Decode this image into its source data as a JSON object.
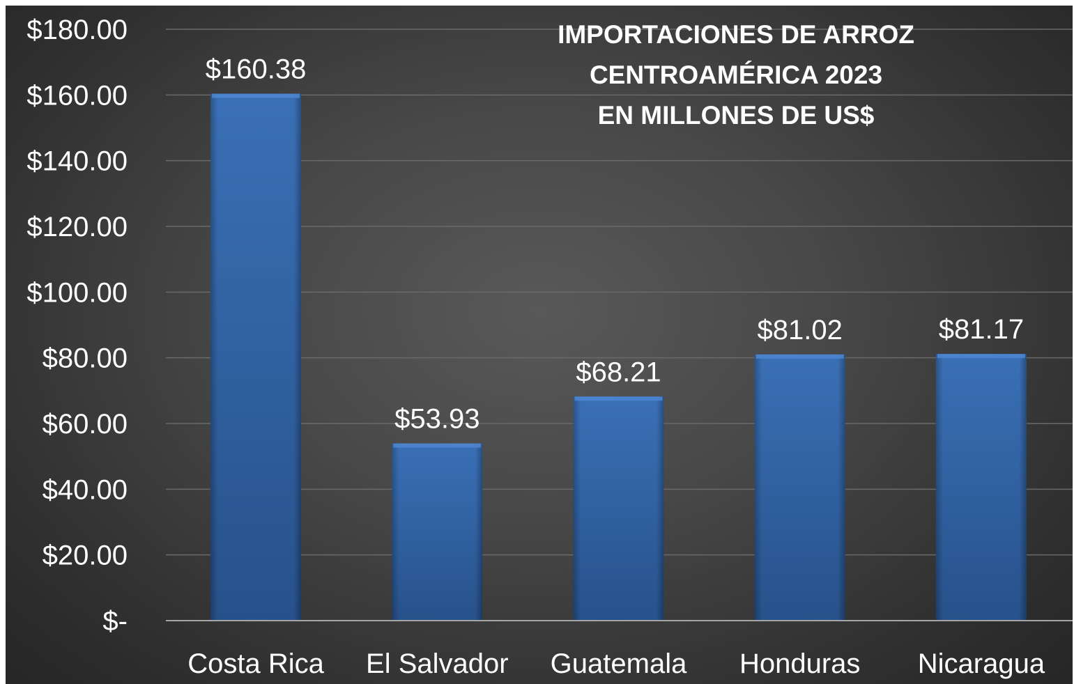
{
  "chart_data": {
    "type": "bar",
    "title": [
      "IMPORTACIONES DE ARROZ",
      "CENTROAMÉRICA 2023",
      "EN MILLONES DE US$"
    ],
    "categories": [
      "Costa Rica",
      "El Salvador",
      "Guatemala",
      "Honduras",
      "Nicaragua"
    ],
    "values": [
      160.38,
      53.93,
      68.21,
      81.02,
      81.17
    ],
    "data_labels": [
      "$160.38",
      "$53.93",
      "$68.21",
      "$81.02",
      "$81.17"
    ],
    "y_ticks": [
      0,
      20,
      40,
      60,
      80,
      100,
      120,
      140,
      160,
      180
    ],
    "y_tick_labels": [
      "$-",
      "$20.00",
      "$40.00",
      "$60.00",
      "$80.00",
      "$100.00",
      "$120.00",
      "$140.00",
      "$160.00",
      "$180.00"
    ],
    "ylim": [
      0,
      180
    ],
    "xlabel": "",
    "ylabel": "",
    "grid": true,
    "legend": "none",
    "colors": {
      "bar": "#3466a8",
      "bar_dark": "#264f86",
      "bar_top": "#4f86d1",
      "grid": "#6a6a6a",
      "axis": "#a6a6a6",
      "text": "#ffffff",
      "background": "#3f3f3f"
    }
  }
}
